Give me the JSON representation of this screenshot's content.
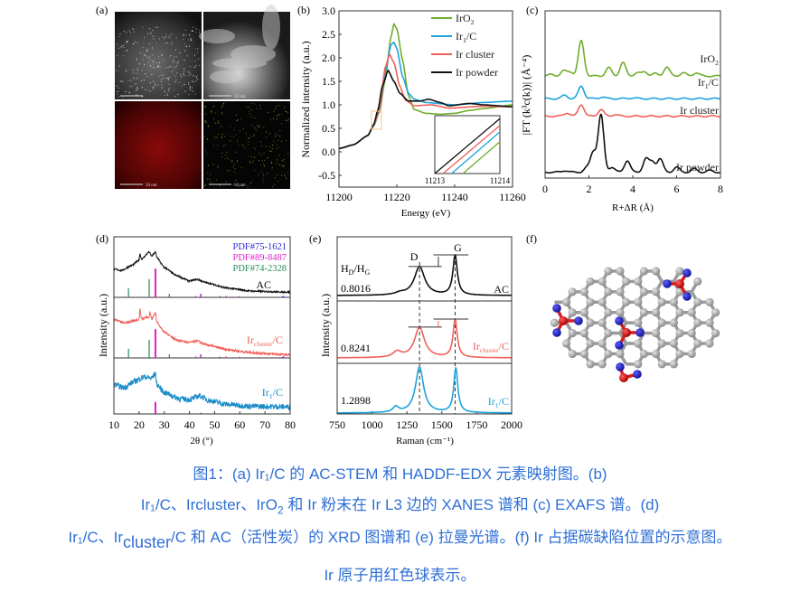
{
  "panel_labels": {
    "a": "(a)",
    "b": "(b)",
    "c": "(c)",
    "d": "(d)",
    "e": "(e)",
    "f": "(f)"
  },
  "panel_a": {
    "scale_bar_label": "50 nm"
  },
  "colors": {
    "IrO2": "#6fae2a",
    "Ir1C": "#1ea3dc",
    "Ircluster": "#f0605a",
    "Irpowder": "#111111",
    "caption": "#2f6fd6",
    "ref1": "#2a2ad8",
    "ref2": "#e020c8",
    "ref3": "#2a8a5a",
    "xrd_ir1": "#1a8cc8"
  },
  "chart_data": [
    {
      "id": "b",
      "type": "line",
      "xlabel": "Energy (eV)",
      "ylabel": "Normalized intensity (a.u.)",
      "xlim": [
        11200,
        11260
      ],
      "ylim": [
        -0.75,
        3.0
      ],
      "xticks": [
        11200,
        11220,
        11240,
        11260
      ],
      "yticks": [
        -0.5,
        0.0,
        0.5,
        1.0,
        1.5,
        2.0,
        2.5,
        3.0
      ],
      "ytick_labels": [
        "-0.5",
        "0.0",
        "0.5",
        "1.0",
        "1.5",
        "2.0",
        "2.5",
        "3.0"
      ],
      "legend": "top-right",
      "series": [
        {
          "name": "IrO2",
          "label_main": "IrO",
          "label_sub": "2",
          "color_key": "IrO2",
          "points": [
            [
              11200,
              0.07
            ],
            [
              11205,
              0.15
            ],
            [
              11210,
              0.35
            ],
            [
              11212,
              0.55
            ],
            [
              11214,
              0.85
            ],
            [
              11216,
              1.55
            ],
            [
              11218,
              2.45
            ],
            [
              11219,
              2.72
            ],
            [
              11220,
              2.62
            ],
            [
              11222,
              1.95
            ],
            [
              11224,
              1.2
            ],
            [
              11226,
              0.9
            ],
            [
              11230,
              0.82
            ],
            [
              11235,
              0.8
            ],
            [
              11240,
              0.82
            ],
            [
              11245,
              0.88
            ],
            [
              11250,
              0.92
            ],
            [
              11260,
              1.0
            ]
          ]
        },
        {
          "name": "Ir1/C",
          "label_main": "Ir",
          "label_sub": "1",
          "label_tail": "/C",
          "color_key": "Ir1C",
          "points": [
            [
              11200,
              0.07
            ],
            [
              11205,
              0.15
            ],
            [
              11210,
              0.35
            ],
            [
              11212,
              0.56
            ],
            [
              11214,
              0.88
            ],
            [
              11216,
              1.7
            ],
            [
              11218,
              2.28
            ],
            [
              11219,
              2.33
            ],
            [
              11220,
              2.2
            ],
            [
              11222,
              1.6
            ],
            [
              11224,
              1.25
            ],
            [
              11226,
              1.12
            ],
            [
              11230,
              1.05
            ],
            [
              11240,
              1.0
            ],
            [
              11250,
              1.05
            ],
            [
              11260,
              1.08
            ]
          ]
        },
        {
          "name": "Ir cluster",
          "label_main": "Ir cluster",
          "color_key": "Ircluster",
          "points": [
            [
              11200,
              0.07
            ],
            [
              11205,
              0.15
            ],
            [
              11210,
              0.35
            ],
            [
              11212,
              0.57
            ],
            [
              11214,
              0.9
            ],
            [
              11216,
              1.8
            ],
            [
              11217.5,
              2.07
            ],
            [
              11219,
              1.9
            ],
            [
              11221,
              1.4
            ],
            [
              11223,
              1.1
            ],
            [
              11226,
              0.98
            ],
            [
              11232,
              1.0
            ],
            [
              11238,
              0.93
            ],
            [
              11250,
              0.97
            ],
            [
              11260,
              0.96
            ]
          ]
        },
        {
          "name": "Ir powder",
          "label_main": "Ir powder",
          "color_key": "Irpowder",
          "points": [
            [
              11200,
              0.07
            ],
            [
              11205,
              0.15
            ],
            [
              11210,
              0.35
            ],
            [
              11212,
              0.58
            ],
            [
              11213.5,
              0.9
            ],
            [
              11215,
              1.4
            ],
            [
              11217,
              1.73
            ],
            [
              11219,
              1.5
            ],
            [
              11221,
              1.25
            ],
            [
              11224,
              1.08
            ],
            [
              11228,
              1.08
            ],
            [
              11231,
              1.12
            ],
            [
              11235,
              1.05
            ],
            [
              11238,
              0.98
            ],
            [
              11245,
              1.03
            ],
            [
              11250,
              1.0
            ],
            [
              11260,
              0.96
            ]
          ]
        }
      ],
      "inset": {
        "xlim": [
          11213,
          11214
        ],
        "xtick_labels": [
          "11213",
          "11214"
        ],
        "lines": [
          {
            "color_key": "Irpowder",
            "y": [
              0.0,
              0.95
            ]
          },
          {
            "color_key": "Ircluster",
            "y": [
              -0.12,
              0.83
            ]
          },
          {
            "color_key": "Ir1C",
            "y": [
              -0.25,
              0.72
            ]
          },
          {
            "color_key": "IrO2",
            "y": [
              -0.42,
              0.55
            ]
          }
        ]
      }
    },
    {
      "id": "c",
      "type": "line",
      "xlabel": "R+ΔR (Å)",
      "ylabel": "|FT (k³c(k))| (Å⁻⁴)",
      "xlim": [
        0,
        8
      ],
      "ylim": [
        0,
        10
      ],
      "xticks": [
        0,
        2,
        4,
        6,
        8
      ],
      "peak_sigma": 0.13,
      "series": [
        {
          "name": "IrO2",
          "label_main": "IrO",
          "label_sub": "2",
          "color_key": "IrO2",
          "offset": 6.1,
          "peaks": [
            [
              0.3,
              0.1
            ],
            [
              0.85,
              0.3
            ],
            [
              1.15,
              0.25
            ],
            [
              1.65,
              2.1
            ],
            [
              2.9,
              0.5
            ],
            [
              3.55,
              0.8
            ],
            [
              4.2,
              0.2
            ],
            [
              4.55,
              0.25
            ],
            [
              5.0,
              0.15
            ],
            [
              5.55,
              0.55
            ],
            [
              6.3,
              0.2
            ],
            [
              6.9,
              0.2
            ]
          ]
        },
        {
          "name": "Ir1/C",
          "label_main": "Ir",
          "label_sub": "1",
          "label_tail": "/C",
          "color_key": "Ir1C",
          "offset": 4.75,
          "peaks": [
            [
              0.9,
              0.2
            ],
            [
              1.65,
              0.75
            ],
            [
              2.6,
              0.1
            ],
            [
              4.0,
              0.05
            ]
          ]
        },
        {
          "name": "Ir cluster",
          "label_main": "Ir cluster",
          "color_key": "Ircluster",
          "offset": 3.7,
          "peaks": [
            [
              1.0,
              0.2
            ],
            [
              1.65,
              0.7
            ],
            [
              2.55,
              0.4
            ],
            [
              3.2,
              0.1
            ]
          ]
        },
        {
          "name": "Ir powder",
          "label_main": "Ir powder",
          "color_key": "Irpowder",
          "offset": 0.35,
          "peaks": [
            [
              0.9,
              0.1
            ],
            [
              1.9,
              0.25
            ],
            [
              2.2,
              1.2
            ],
            [
              2.55,
              3.4
            ],
            [
              3.05,
              0.3
            ],
            [
              3.75,
              0.7
            ],
            [
              4.6,
              0.8
            ],
            [
              4.9,
              0.6
            ],
            [
              5.25,
              0.8
            ],
            [
              6.0,
              0.3
            ],
            [
              6.8,
              0.2
            ],
            [
              7.5,
              0.1
            ]
          ]
        }
      ]
    },
    {
      "id": "d",
      "type": "line",
      "xlabel": "2θ (°)",
      "ylabel": "Intensity (a.u.)",
      "xlim": [
        10,
        80
      ],
      "xticks": [
        10,
        20,
        30,
        40,
        50,
        60,
        70,
        80
      ],
      "legend": "top-right",
      "references": [
        {
          "name": "PDF#75-1621",
          "color_key": "ref1",
          "sticks": [
            [
              44.5,
              0.12
            ],
            [
              52,
              0.04
            ],
            [
              77,
              0.04
            ]
          ]
        },
        {
          "name": "PDF#89-8487",
          "color_key": "ref2",
          "sticks": [
            [
              26.5,
              0.95
            ],
            [
              42.5,
              0.05
            ],
            [
              44.6,
              0.1
            ],
            [
              54.5,
              0.05
            ],
            [
              59.8,
              0.04
            ],
            [
              77.5,
              0.05
            ]
          ]
        },
        {
          "name": "PDF#74-2328",
          "color_key": "ref3",
          "sticks": [
            [
              15.8,
              0.3
            ],
            [
              24,
              0.6
            ],
            [
              32,
              0.12
            ]
          ]
        }
      ],
      "series": [
        {
          "name": "AC",
          "label_main": "AC",
          "color_key": "Irpowder",
          "noise": 0.015,
          "points": [
            [
              10,
              0.55
            ],
            [
              13,
              0.52
            ],
            [
              17,
              0.62
            ],
            [
              20,
              0.72
            ],
            [
              20.3,
              0.85
            ],
            [
              21,
              0.74
            ],
            [
              24,
              0.88
            ],
            [
              25,
              0.8
            ],
            [
              26.5,
              0.88
            ],
            [
              27,
              0.78
            ],
            [
              30,
              0.58
            ],
            [
              35,
              0.42
            ],
            [
              40,
              0.32
            ],
            [
              43,
              0.35
            ],
            [
              47,
              0.28
            ],
            [
              55,
              0.18
            ],
            [
              65,
              0.12
            ],
            [
              80,
              0.1
            ]
          ]
        },
        {
          "name": "Ircluster/C",
          "label_main": "Ir",
          "label_sub": "cluster",
          "label_tail": "/C",
          "color_key": "Ircluster",
          "noise": 0.02,
          "points": [
            [
              10,
              0.75
            ],
            [
              14,
              0.68
            ],
            [
              18,
              0.72
            ],
            [
              20,
              0.75
            ],
            [
              20.3,
              0.95
            ],
            [
              21,
              0.76
            ],
            [
              24,
              0.8
            ],
            [
              24.3,
              0.9
            ],
            [
              25,
              0.75
            ],
            [
              26.5,
              0.88
            ],
            [
              27,
              0.7
            ],
            [
              30,
              0.5
            ],
            [
              35,
              0.35
            ],
            [
              40,
              0.3
            ],
            [
              43,
              0.33
            ],
            [
              47,
              0.25
            ],
            [
              55,
              0.16
            ],
            [
              65,
              0.1
            ],
            [
              80,
              0.06
            ]
          ]
        },
        {
          "name": "Ir1/C",
          "label_main": "Ir",
          "label_sub": "1",
          "label_tail": "/C",
          "color_key": "xrd_ir1",
          "noise": 0.06,
          "points": [
            [
              10,
              0.62
            ],
            [
              14,
              0.55
            ],
            [
              18,
              0.68
            ],
            [
              22,
              0.78
            ],
            [
              25,
              0.75
            ],
            [
              26.5,
              0.85
            ],
            [
              27,
              0.62
            ],
            [
              30,
              0.45
            ],
            [
              36,
              0.32
            ],
            [
              40,
              0.3
            ],
            [
              44,
              0.38
            ],
            [
              48,
              0.28
            ],
            [
              55,
              0.2
            ],
            [
              65,
              0.16
            ],
            [
              80,
              0.15
            ]
          ]
        }
      ]
    },
    {
      "id": "e",
      "type": "line",
      "xlabel": "Raman (cm⁻¹)",
      "ylabel": "Intensity (a.u.)",
      "xlim": [
        750,
        2000
      ],
      "xticks": [
        750,
        1000,
        1250,
        1500,
        1750,
        2000
      ],
      "annotation_header_main": "H",
      "annotation_header_sub1": "D",
      "annotation_header_mid": "/H",
      "annotation_header_sub2": "G",
      "peak_labels": {
        "D": "D",
        "G": "G"
      },
      "D_position": 1340,
      "G_position": 1595,
      "series": [
        {
          "name": "AC",
          "label_main": "AC",
          "ratio": "0.8016",
          "color_key": "Irpowder",
          "bands": [
            [
              1340,
              0.72,
              90
            ],
            [
              1595,
              1.0,
              38
            ],
            [
              1200,
              0.05,
              80
            ]
          ]
        },
        {
          "name": "Ircluster/C",
          "label_main": "Ir",
          "label_sub": "cluster",
          "label_tail": "/C",
          "ratio": "0.8241",
          "color_key": "Ircluster",
          "bands": [
            [
              1340,
              0.8,
              85
            ],
            [
              1595,
              1.0,
              36
            ],
            [
              1180,
              0.15,
              70
            ]
          ]
        },
        {
          "name": "Ir1/C",
          "label_main": "Ir",
          "label_sub": "1",
          "label_tail": "/C",
          "ratio": "1.2898",
          "color_key": "Ir1C",
          "bands": [
            [
              1340,
              1.0,
              70
            ],
            [
              1600,
              0.97,
              35
            ],
            [
              1170,
              0.12,
              50
            ]
          ]
        }
      ]
    }
  ],
  "caption": {
    "line1": "图1：(a) Ir₁/C 的 AC-STEM 和 HADDF-EDX 元素映射图。(b)",
    "line2_a": "Ir₁/C、Ircluster、IrO",
    "line2_sub": "2",
    "line2_b": " 和 Ir 粉末在 Ir L3 边的 XANES 谱和 (c) EXAFS 谱。(d)",
    "line3_a": "Ir₁/C、Ir",
    "line3_sub": "cluster",
    "line3_b": "/C 和 AC（活性炭）的 XRD 图谱和 (e) 拉曼光谱。(f) Ir 占据碳缺陷位置的示意图。",
    "line4": "Ir 原子用红色球表示。"
  }
}
